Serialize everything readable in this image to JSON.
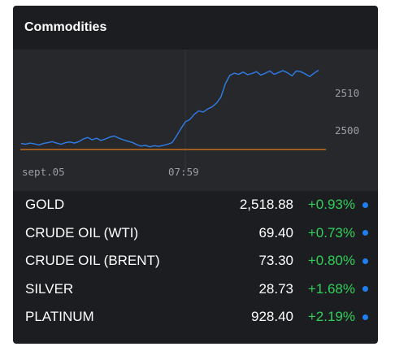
{
  "widget": {
    "title": "Commodities"
  },
  "chart": {
    "x_labels": [
      "sept.05",
      "07:59"
    ],
    "y_labels": [
      "2510",
      "2500"
    ],
    "line_color": "#2f7ee8",
    "baseline_color": "#c76a1a",
    "series": [
      2496.4,
      2496.2,
      2496.5,
      2496.3,
      2496.0,
      2496.4,
      2496.6,
      2496.9,
      2496.5,
      2496.2,
      2496.6,
      2496.8,
      2496.5,
      2496.9,
      2497.6,
      2498.0,
      2497.4,
      2497.8,
      2497.2,
      2497.6,
      2498.1,
      2498.4,
      2497.8,
      2497.4,
      2497.0,
      2496.7,
      2496.1,
      2495.7,
      2495.9,
      2495.5,
      2495.8,
      2495.6,
      2495.9,
      2496.2,
      2496.6,
      2498.4,
      2500.4,
      2502.2,
      2502.8,
      2504.2,
      2505.1,
      2504.8,
      2505.6,
      2506.2,
      2507.2,
      2508.8,
      2512.4,
      2514.6,
      2515.2,
      2514.9,
      2515.5,
      2514.8,
      2515.1,
      2515.6,
      2514.7,
      2515.2,
      2515.8,
      2514.9,
      2515.4,
      2515.9,
      2515.3,
      2514.5,
      2515.8,
      2515.6,
      2515.0,
      2514.3,
      2515.2,
      2516.0
    ]
  },
  "rows": [
    {
      "name": "GOLD",
      "price": "2,518.88",
      "change": "+0.93%"
    },
    {
      "name": "CRUDE OIL (WTI)",
      "price": "69.40",
      "change": "+0.73%"
    },
    {
      "name": "CRUDE OIL (BRENT)",
      "price": "73.30",
      "change": "+0.80%"
    },
    {
      "name": "SILVER",
      "price": "28.73",
      "change": "+1.68%"
    },
    {
      "name": "PLATINUM",
      "price": "928.40",
      "change": "+2.19%"
    }
  ]
}
